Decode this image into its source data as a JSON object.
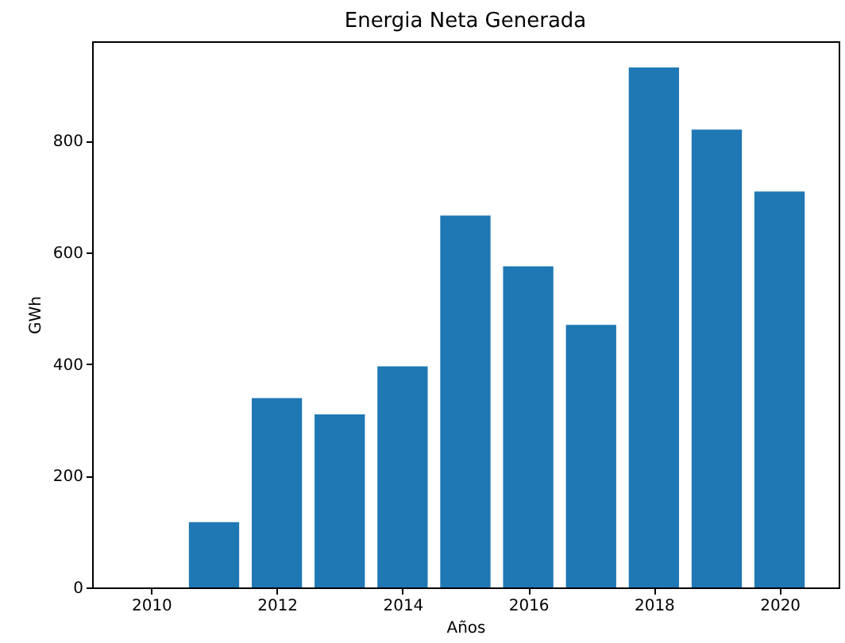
{
  "chart_data": {
    "type": "bar",
    "title": "Energia Neta Generada",
    "xlabel": "Años",
    "ylabel": "GWh",
    "x": [
      2010,
      2011,
      2012,
      2013,
      2014,
      2015,
      2016,
      2017,
      2018,
      2019,
      2020
    ],
    "values": [
      0,
      117,
      339,
      310,
      396,
      666,
      575,
      470,
      931,
      820,
      709
    ],
    "color": "#1f77b4",
    "xlim": [
      2009.06,
      2020.94
    ],
    "xticks": [
      2010,
      2012,
      2014,
      2016,
      2018,
      2020
    ],
    "ylim": [
      0,
      978
    ],
    "yticks": [
      0,
      200,
      400,
      600,
      800
    ]
  }
}
